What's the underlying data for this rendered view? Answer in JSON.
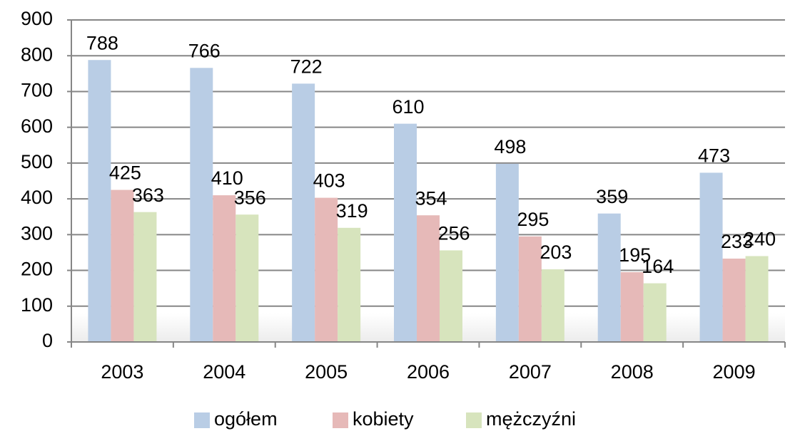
{
  "chart_data": {
    "type": "bar",
    "categories": [
      "2003",
      "2004",
      "2005",
      "2006",
      "2007",
      "2008",
      "2009"
    ],
    "series": [
      {
        "name": "ogółem",
        "color": "#b9cde5",
        "values": [
          788,
          766,
          722,
          610,
          498,
          359,
          473
        ]
      },
      {
        "name": "kobiety",
        "color": "#e6b9b8",
        "values": [
          425,
          410,
          403,
          354,
          295,
          195,
          233
        ]
      },
      {
        "name": "mężczyźni",
        "color": "#d7e4bd",
        "values": [
          363,
          356,
          319,
          256,
          203,
          164,
          240
        ]
      }
    ],
    "ylim": [
      0,
      900
    ],
    "yticks": [
      0,
      100,
      200,
      300,
      400,
      500,
      600,
      700,
      800,
      900
    ],
    "grid": true,
    "legend": "bottom"
  }
}
